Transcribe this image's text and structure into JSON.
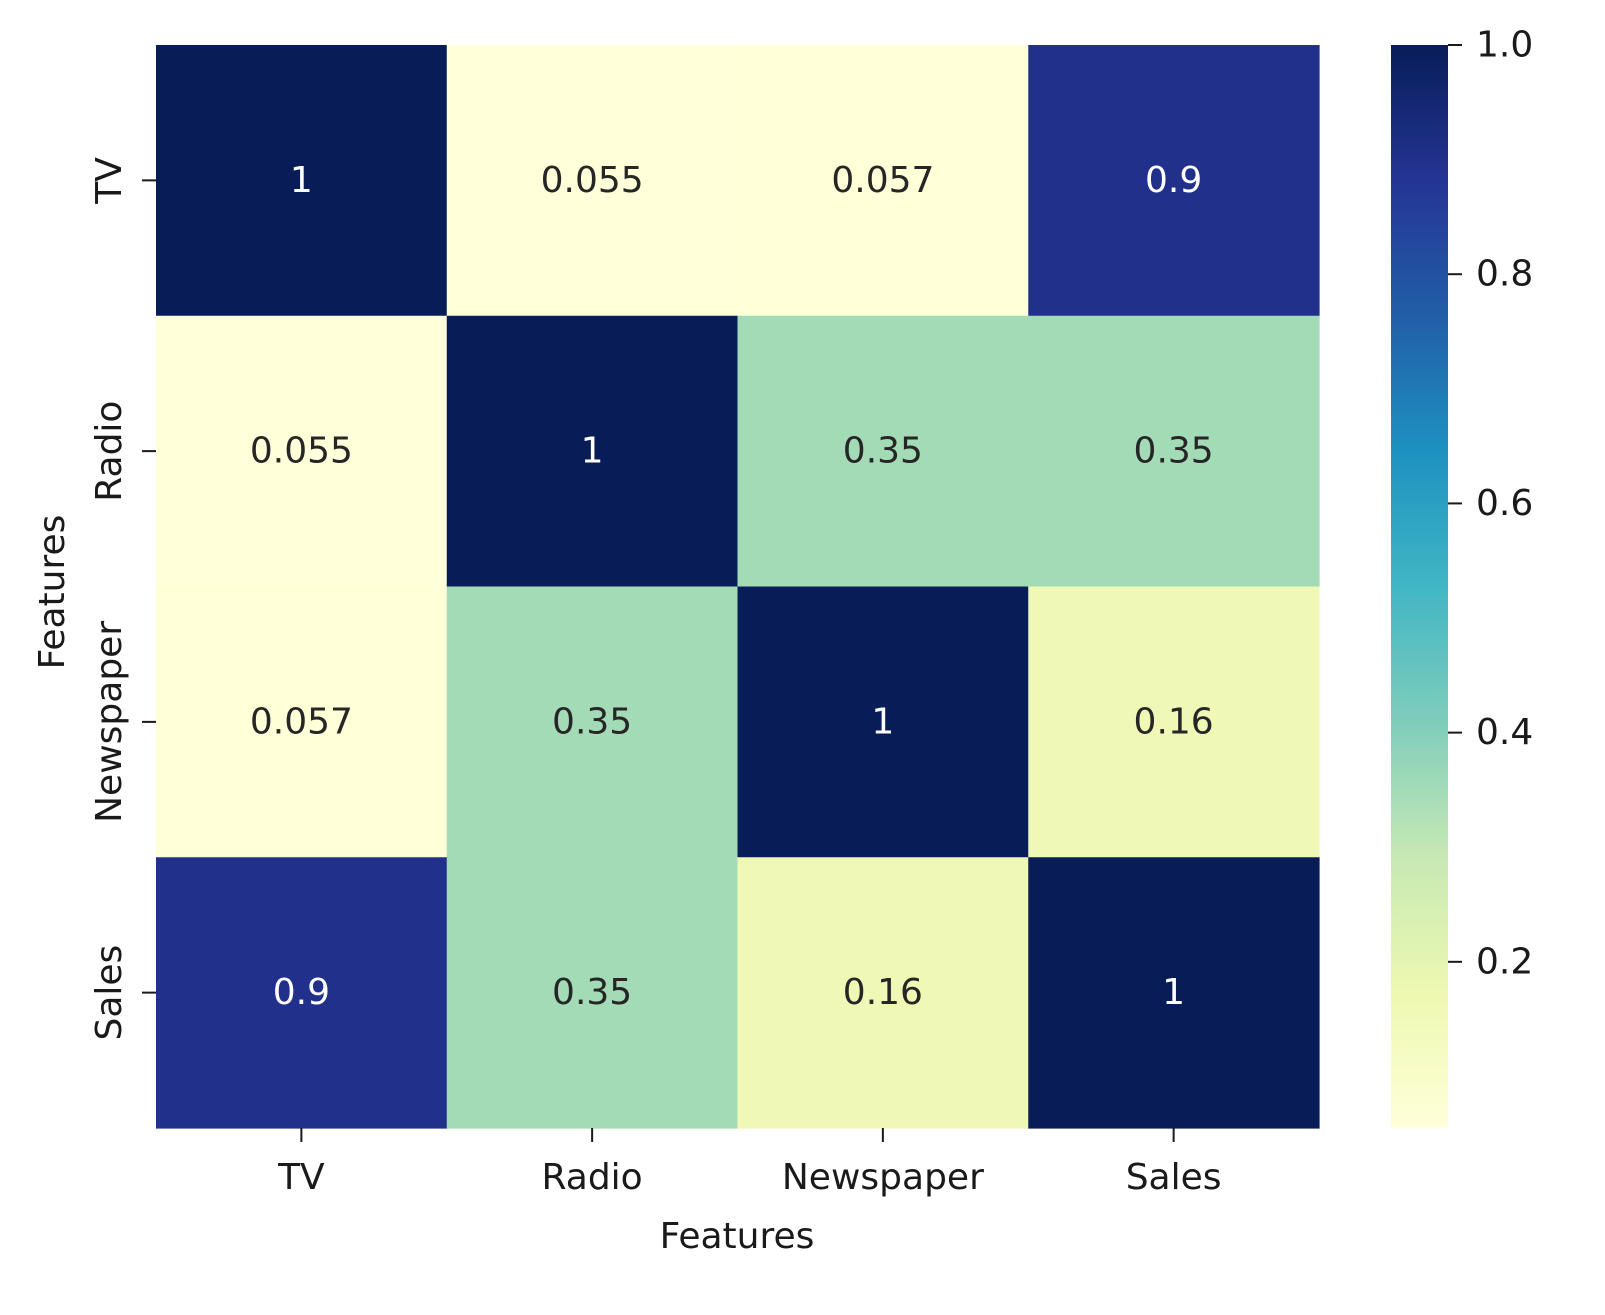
{
  "chart_data": {
    "type": "heatmap",
    "title": "",
    "xlabel": "Features",
    "ylabel": "Features",
    "x_categories": [
      "TV",
      "Radio",
      "Newspaper",
      "Sales"
    ],
    "y_categories": [
      "TV",
      "Radio",
      "Newspaper",
      "Sales"
    ],
    "values": [
      [
        1,
        0.055,
        0.057,
        0.9
      ],
      [
        0.055,
        1,
        0.35,
        0.35
      ],
      [
        0.057,
        0.35,
        1,
        0.16
      ],
      [
        0.9,
        0.35,
        0.16,
        1
      ]
    ],
    "annotations": [
      [
        "1",
        "0.055",
        "0.057",
        "0.9"
      ],
      [
        "0.055",
        "1",
        "0.35",
        "0.35"
      ],
      [
        "0.057",
        "0.35",
        "1",
        "0.16"
      ],
      [
        "0.9",
        "0.35",
        "0.16",
        "1"
      ]
    ],
    "colormap": "YlGnBu",
    "colorbar": {
      "range": [
        0.055,
        1.0
      ],
      "ticks": [
        0.2,
        0.4,
        0.6,
        0.8,
        1.0
      ],
      "tick_labels": [
        "0.2",
        "0.4",
        "0.6",
        "0.8",
        "1.0"
      ]
    }
  }
}
